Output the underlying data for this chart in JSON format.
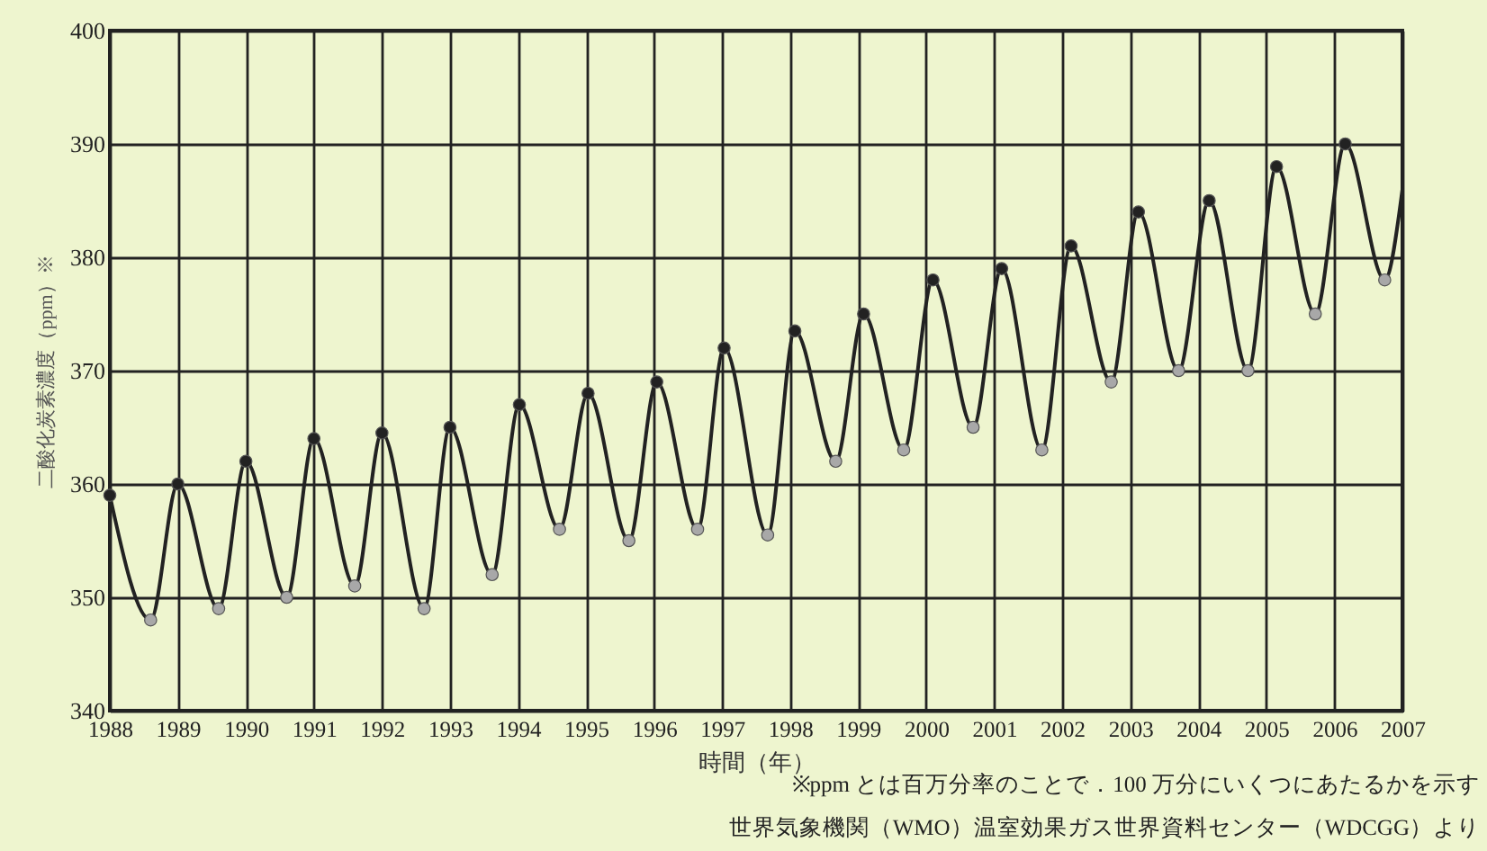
{
  "chart_data": {
    "type": "line",
    "xlabel": "時間（年）",
    "ylabel": "二酸化炭素濃度（ppm）※",
    "annotations": [
      "※ppm とは百万分率のことで．100 万分にいくつにあたるかを示す",
      "世界気象機関（WMO）温室効果ガス世界資料センター（WDCGG）より"
    ],
    "xlim": [
      1988,
      2007
    ],
    "xticks": [
      1988,
      1989,
      1990,
      1991,
      1992,
      1993,
      1994,
      1995,
      1996,
      1997,
      1998,
      1999,
      2000,
      2001,
      2002,
      2003,
      2004,
      2005,
      2006,
      2007
    ],
    "ylim": [
      340,
      400
    ],
    "yticks": [
      340,
      350,
      360,
      370,
      380,
      390,
      400
    ],
    "grid": true,
    "series": [
      {
        "color": "#222222",
        "x": [
          1988.0,
          1988.6,
          1989.0,
          1989.6,
          1990.0,
          1990.6,
          1991.0,
          1991.6,
          1992.0,
          1992.62,
          1993.0,
          1993.62,
          1994.02,
          1994.61,
          1995.03,
          1995.63,
          1996.04,
          1996.64,
          1997.03,
          1997.67,
          1998.07,
          1998.67,
          1999.08,
          1999.67,
          2000.1,
          2000.69,
          2001.11,
          2001.7,
          2002.13,
          2002.72,
          2003.12,
          2003.71,
          2004.16,
          2004.73,
          2005.15,
          2005.72,
          2006.16,
          2006.74,
          2007.0
        ],
        "values": [
          359,
          348,
          360,
          349,
          362,
          350,
          364,
          351,
          364.5,
          349,
          365,
          352,
          367,
          356,
          368,
          355,
          369,
          356,
          372,
          355.5,
          373.5,
          362,
          375,
          363,
          378,
          365,
          379,
          363,
          381,
          369,
          384,
          370,
          385,
          370,
          388,
          375,
          390,
          378,
          386
        ]
      },
      {
        "type": "scatter",
        "marker": "circle",
        "color": "#222222",
        "x": [
          1988.0,
          1989.0,
          1990.0,
          1991.0,
          1992.0,
          1993.0,
          1994.02,
          1995.03,
          1996.04,
          1997.03,
          1998.07,
          1999.08,
          2000.1,
          2001.11,
          2002.13,
          2003.12,
          2004.16,
          2005.15,
          2006.16
        ],
        "values": [
          359,
          360,
          362,
          364,
          364.5,
          365,
          367,
          368,
          369,
          372,
          373.5,
          375,
          378,
          379,
          381,
          384,
          385,
          388,
          390
        ]
      },
      {
        "type": "scatter",
        "marker": "circle",
        "color": "#a8a8a8",
        "x": [
          1988.6,
          1989.6,
          1990.6,
          1991.6,
          1992.62,
          1993.62,
          1994.61,
          1995.63,
          1996.64,
          1997.67,
          1998.67,
          1999.67,
          2000.69,
          2001.7,
          2002.72,
          2003.71,
          2004.73,
          2005.72,
          2006.74
        ],
        "values": [
          348,
          349,
          350,
          351,
          349,
          352,
          356,
          355,
          356,
          355.5,
          362,
          363,
          365,
          363,
          369,
          370,
          370,
          375,
          378
        ]
      }
    ]
  }
}
